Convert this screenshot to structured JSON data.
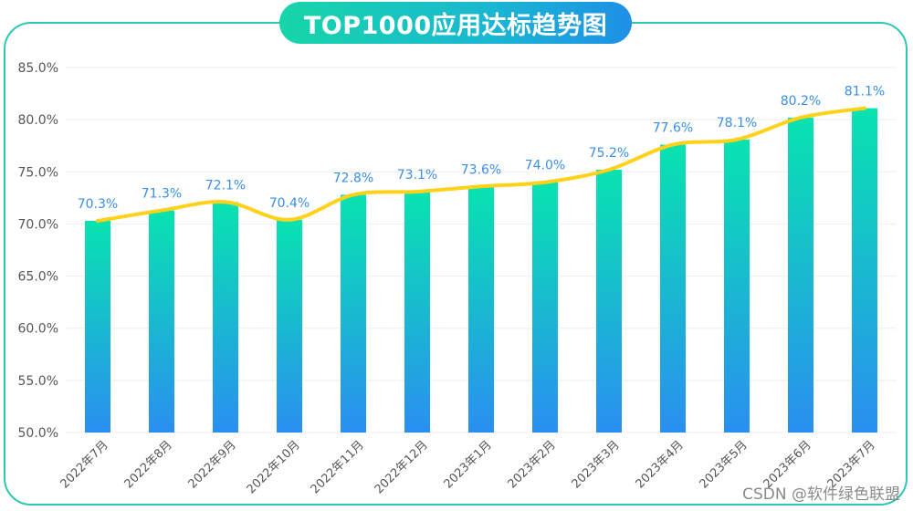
{
  "title": "TOP1000应用达标趋势图",
  "watermark": "CSDN @软件绿色联盟",
  "colors": {
    "frame": "#2fc6b4",
    "bar_top": "#08e3b0",
    "bar_bottom": "#2a8ff0",
    "line": "#ffd21a",
    "label": "#3a8ee6",
    "tick": "#555555",
    "grid": "#eeeeee"
  },
  "chart_data": {
    "type": "bar",
    "categories": [
      "2022年7月",
      "2022年8月",
      "2022年9月",
      "2022年10月",
      "2022年11月",
      "2022年12月",
      "2023年1月",
      "2023年2月",
      "2023年3月",
      "2023年4月",
      "2023年5月",
      "2023年6月",
      "2023年7月"
    ],
    "values": [
      70.3,
      71.3,
      72.1,
      70.4,
      72.8,
      73.1,
      73.6,
      74.0,
      75.2,
      77.6,
      78.1,
      80.2,
      81.1
    ],
    "data_labels": [
      "70.3%",
      "71.3%",
      "72.1%",
      "70.4%",
      "72.8%",
      "73.1%",
      "73.6%",
      "74.0%",
      "75.2%",
      "77.6%",
      "78.1%",
      "80.2%",
      "81.1%"
    ],
    "overlay_line": "smooth trend line over bar values",
    "ylim": [
      50,
      85
    ],
    "yticks": [
      50,
      55,
      60,
      65,
      70,
      75,
      80,
      85
    ],
    "ytick_labels": [
      "50.0%",
      "55.0%",
      "60.0%",
      "65.0%",
      "70.0%",
      "75.0%",
      "80.0%",
      "85.0%"
    ],
    "grid": true,
    "title": "TOP1000应用达标趋势图",
    "xlabel": "",
    "ylabel": ""
  }
}
